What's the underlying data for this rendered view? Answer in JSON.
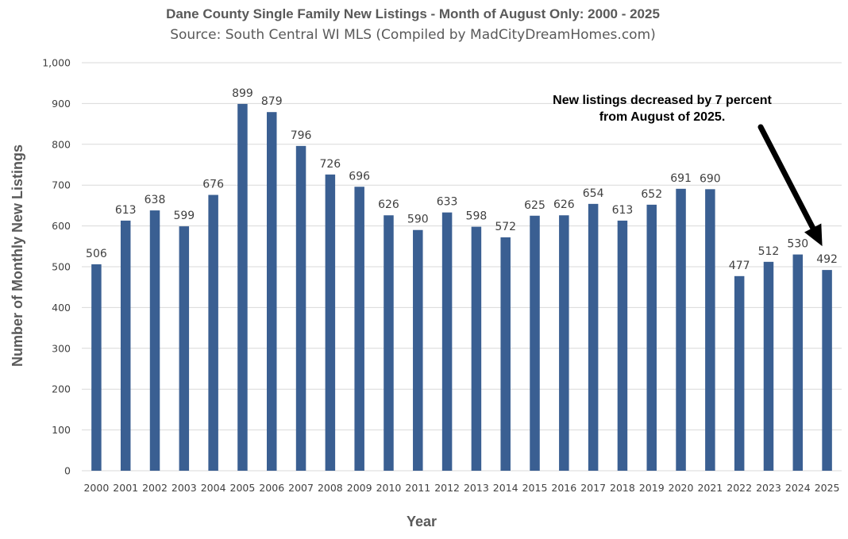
{
  "chart_data": {
    "type": "bar",
    "title": "Dane County Single Family New Listings - Month of August Only: 2000 - 2025",
    "subtitle": "Source: South Central WI MLS (Compiled by MadCityDreamHomes.com)",
    "xlabel": "Year",
    "ylabel": "Number of Monthly New Listings",
    "ylim": [
      0,
      1000
    ],
    "yticks": [
      0,
      100,
      200,
      300,
      400,
      500,
      600,
      700,
      800,
      900,
      1000
    ],
    "ytick_labels": [
      "0",
      "100",
      "200",
      "300",
      "400",
      "500",
      "600",
      "700",
      "800",
      "900",
      "1,000"
    ],
    "grid": true,
    "legend": "none",
    "categories": [
      "2000",
      "2001",
      "2002",
      "2003",
      "2004",
      "2005",
      "2006",
      "2007",
      "2008",
      "2009",
      "2010",
      "2011",
      "2012",
      "2013",
      "2014",
      "2015",
      "2016",
      "2017",
      "2018",
      "2019",
      "2020",
      "2021",
      "2022",
      "2023",
      "2024",
      "2025"
    ],
    "values": [
      506,
      613,
      638,
      599,
      676,
      899,
      879,
      796,
      726,
      696,
      626,
      590,
      633,
      598,
      572,
      625,
      626,
      654,
      613,
      652,
      691,
      690,
      477,
      512,
      530,
      492
    ],
    "bar_color": "#3a5f92",
    "annotation": {
      "lines": [
        "New listings decreased by 7 percent",
        "from August of 2025."
      ],
      "target_category": "2025"
    }
  }
}
